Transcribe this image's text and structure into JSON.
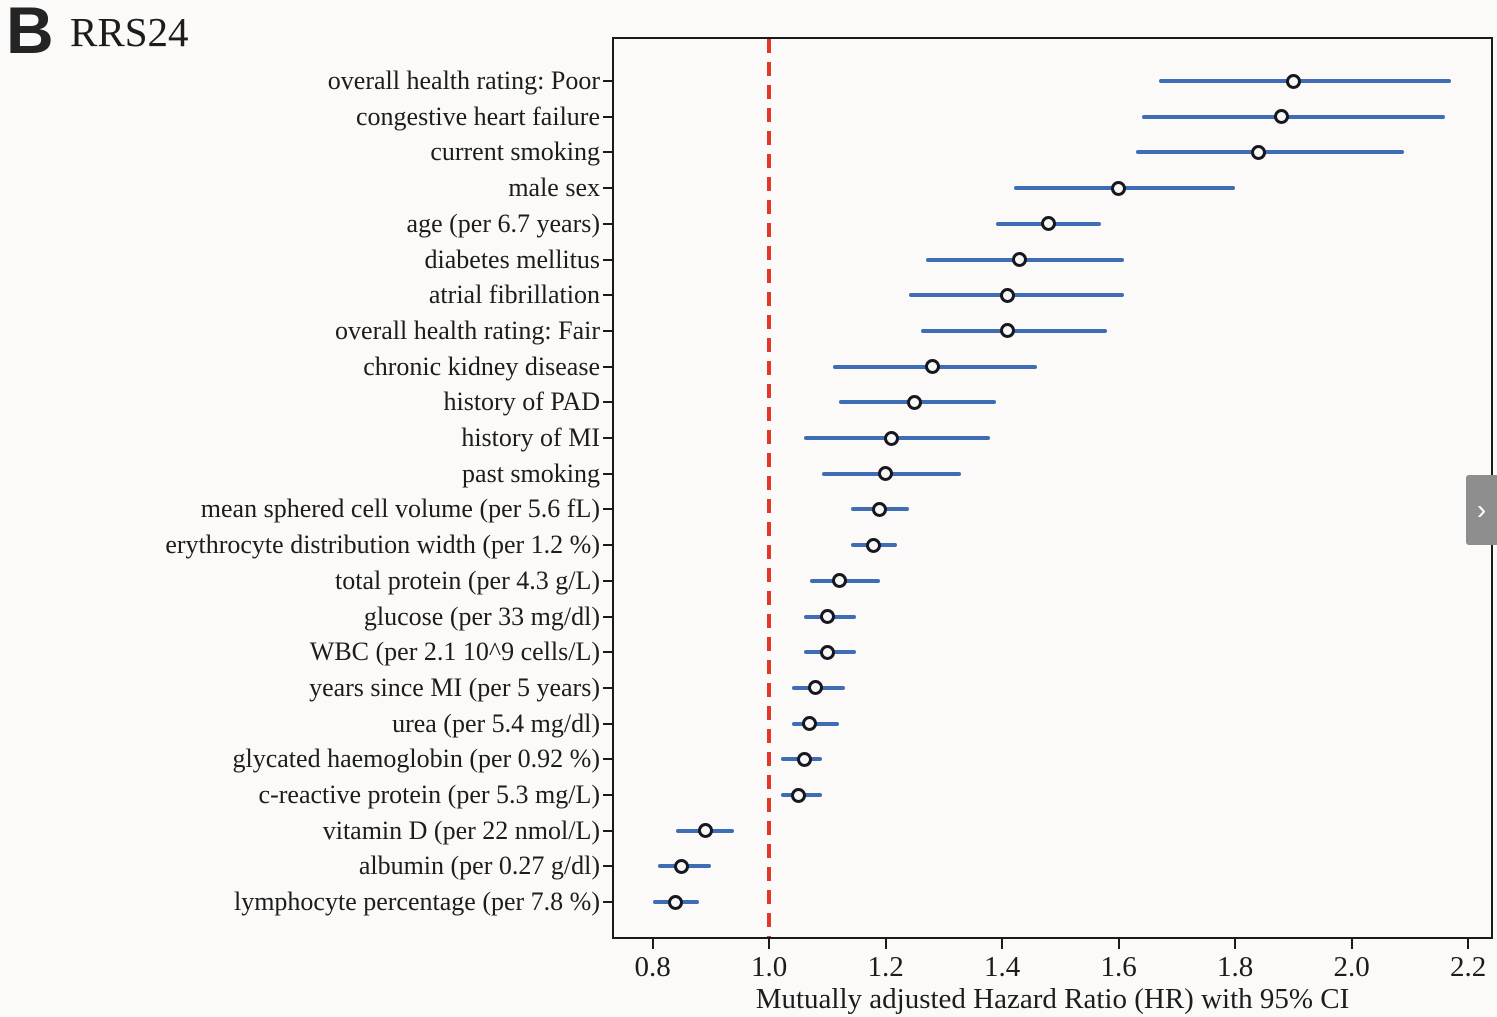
{
  "panel": {
    "letter": "B",
    "title": "RRS24"
  },
  "nav": {
    "next_label": "›"
  },
  "colors": {
    "ci_line": "#3e6db5",
    "marker_ring": "#17171f",
    "marker_fill": "#f7f8f6",
    "reference_line": "#e2382a",
    "axis": "#1a1a1a",
    "nav_button_bg": "#8e8e8e"
  },
  "chart_data": {
    "type": "scatter",
    "subtype": "forest-plot",
    "xlabel": "Mutually adjusted Hazard Ratio (HR) with 95% CI",
    "x_ticks": [
      0.8,
      1.0,
      1.2,
      1.4,
      1.6,
      1.8,
      2.0,
      2.2
    ],
    "xlim": [
      0.732,
      2.241
    ],
    "reference_line_x": 1.0,
    "grid": false,
    "legend": false,
    "items": [
      {
        "label": "overall health rating: Poor",
        "hr": 1.9,
        "ci_low": 1.67,
        "ci_high": 2.17
      },
      {
        "label": "congestive heart failure",
        "hr": 1.88,
        "ci_low": 1.64,
        "ci_high": 2.16
      },
      {
        "label": "current smoking",
        "hr": 1.84,
        "ci_low": 1.63,
        "ci_high": 2.09
      },
      {
        "label": "male sex",
        "hr": 1.6,
        "ci_low": 1.42,
        "ci_high": 1.8
      },
      {
        "label": "age (per 6.7 years)",
        "hr": 1.48,
        "ci_low": 1.39,
        "ci_high": 1.57
      },
      {
        "label": "diabetes mellitus",
        "hr": 1.43,
        "ci_low": 1.27,
        "ci_high": 1.61
      },
      {
        "label": "atrial fibrillation",
        "hr": 1.41,
        "ci_low": 1.24,
        "ci_high": 1.61
      },
      {
        "label": "overall health rating: Fair",
        "hr": 1.41,
        "ci_low": 1.26,
        "ci_high": 1.58
      },
      {
        "label": "chronic kidney disease",
        "hr": 1.28,
        "ci_low": 1.11,
        "ci_high": 1.46
      },
      {
        "label": "history of PAD",
        "hr": 1.25,
        "ci_low": 1.12,
        "ci_high": 1.39
      },
      {
        "label": "history of MI",
        "hr": 1.21,
        "ci_low": 1.06,
        "ci_high": 1.38
      },
      {
        "label": "past smoking",
        "hr": 1.2,
        "ci_low": 1.09,
        "ci_high": 1.33
      },
      {
        "label": "mean sphered cell volume (per 5.6 fL)",
        "hr": 1.19,
        "ci_low": 1.14,
        "ci_high": 1.24
      },
      {
        "label": "erythrocyte distribution width (per 1.2 %)",
        "hr": 1.18,
        "ci_low": 1.14,
        "ci_high": 1.22
      },
      {
        "label": "total protein (per 4.3 g/L)",
        "hr": 1.12,
        "ci_low": 1.07,
        "ci_high": 1.19
      },
      {
        "label": "glucose (per 33 mg/dl)",
        "hr": 1.1,
        "ci_low": 1.06,
        "ci_high": 1.15
      },
      {
        "label": "WBC (per 2.1 10^9 cells/L)",
        "hr": 1.1,
        "ci_low": 1.06,
        "ci_high": 1.15
      },
      {
        "label": "years since MI (per 5 years)",
        "hr": 1.08,
        "ci_low": 1.04,
        "ci_high": 1.13
      },
      {
        "label": "urea (per 5.4 mg/dl)",
        "hr": 1.07,
        "ci_low": 1.04,
        "ci_high": 1.12
      },
      {
        "label": "glycated haemoglobin (per 0.92 %)",
        "hr": 1.06,
        "ci_low": 1.02,
        "ci_high": 1.09
      },
      {
        "label": "c-reactive protein (per 5.3 mg/L)",
        "hr": 1.05,
        "ci_low": 1.02,
        "ci_high": 1.09
      },
      {
        "label": "vitamin D (per 22 nmol/L)",
        "hr": 0.89,
        "ci_low": 0.84,
        "ci_high": 0.94
      },
      {
        "label": "albumin (per 0.27 g/dl)",
        "hr": 0.85,
        "ci_low": 0.81,
        "ci_high": 0.9
      },
      {
        "label": "lymphocyte percentage (per 7.8 %)",
        "hr": 0.84,
        "ci_low": 0.8,
        "ci_high": 0.88
      }
    ]
  }
}
